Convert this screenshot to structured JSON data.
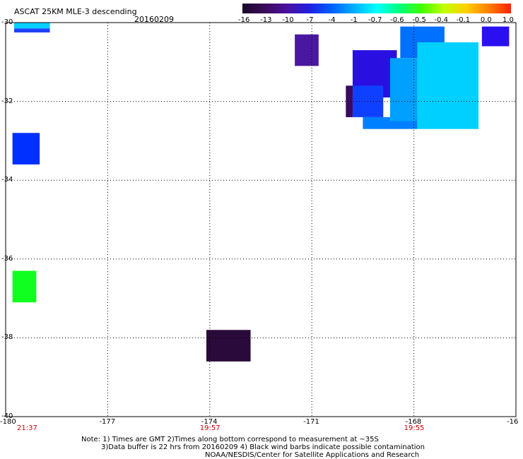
{
  "title": "ASCAT 25KM MLE-3 descending",
  "date": "20160209",
  "colorbar": {
    "labels": [
      "-16",
      "-13",
      "-10",
      "-7",
      "-4",
      "-1",
      "-0.7",
      "-0.6",
      "-0.5",
      "-0.4",
      "-0.1",
      "0.0",
      "1.0"
    ],
    "colors": [
      "#1a0a2a",
      "#3a0a5a",
      "#4a10a0",
      "#2020e0",
      "#0060ff",
      "#00b0ff",
      "#00ffff",
      "#00ff80",
      "#40ff00",
      "#c0ff00",
      "#ffd000",
      "#ff8000",
      "#ff2000"
    ]
  },
  "map": {
    "lon_range": [
      -180,
      -165
    ],
    "lat_range": [
      -40,
      -30
    ],
    "y_ticks": [
      "-30",
      "-32",
      "-34",
      "-36",
      "-38",
      "-40"
    ],
    "x_ticks": [
      "-180",
      "-177",
      "-174",
      "-171",
      "-168",
      "-16"
    ],
    "swath_times": [
      {
        "label": "21:37",
        "lon": -180
      },
      {
        "label": "19:57",
        "lon": -174
      },
      {
        "label": "19:55",
        "lon": -168
      }
    ],
    "cells": [
      {
        "lon0": -179.75,
        "lon1": -178.7,
        "lat0": -30.0,
        "lat1": -30.15,
        "value": -1,
        "color": "#00d0ff"
      },
      {
        "lon0": -179.75,
        "lon1": -178.7,
        "lat0": -30.15,
        "lat1": -30.25,
        "value": -7,
        "color": "#2040ff"
      },
      {
        "lon0": -179.8,
        "lon1": -179.0,
        "lat0": -32.8,
        "lat1": -33.6,
        "value": -7,
        "color": "#0030ff"
      },
      {
        "lon0": -179.8,
        "lon1": -179.1,
        "lat0": -36.3,
        "lat1": -37.1,
        "value": -0.5,
        "color": "#10ff20"
      },
      {
        "lon0": -174.1,
        "lon1": -172.8,
        "lat0": -37.8,
        "lat1": -38.6,
        "value": -16,
        "color": "#2a0a3a"
      },
      {
        "lon0": -171.5,
        "lon1": -170.8,
        "lat0": -30.3,
        "lat1": -31.1,
        "value": -10,
        "color": "#4a18a0"
      },
      {
        "lon0": -169.8,
        "lon1": -168.5,
        "lat0": -30.7,
        "lat1": -31.9,
        "value": -7,
        "color": "#2a10e0"
      },
      {
        "lon0": -170.0,
        "lon1": -169.8,
        "lat0": -31.6,
        "lat1": -32.4,
        "value": -13,
        "color": "#3a0a60"
      },
      {
        "lon0": -169.8,
        "lon1": -168.9,
        "lat0": -31.6,
        "lat1": -32.4,
        "value": -7,
        "color": "#1040ff"
      },
      {
        "lon0": -169.5,
        "lon1": -167.9,
        "lat0": -32.4,
        "lat1": -32.7,
        "value": -4,
        "color": "#0080ff"
      },
      {
        "lon0": -168.4,
        "lon1": -167.1,
        "lat0": -30.1,
        "lat1": -30.9,
        "value": -4,
        "color": "#0070ff"
      },
      {
        "lon0": -167.9,
        "lon1": -166.1,
        "lat0": -30.5,
        "lat1": -32.7,
        "value": -1,
        "color": "#00d0ff"
      },
      {
        "lon0": -168.7,
        "lon1": -167.9,
        "lat0": -30.9,
        "lat1": -32.5,
        "value": -1,
        "color": "#00a0ff"
      },
      {
        "lon0": -166.0,
        "lon1": -165.2,
        "lat0": -30.1,
        "lat1": -30.6,
        "value": -7,
        "color": "#2a10f0"
      }
    ]
  },
  "notes": [
    "Note: 1) Times are GMT 2)Times along bottom correspond to measurement at ~35S",
    "3)Data buffer is 22 hrs from 20160209 4) Black wind barbs indicate possible contamination",
    "NOAA/NESDIS/Center for Satellite Applications and Research"
  ]
}
